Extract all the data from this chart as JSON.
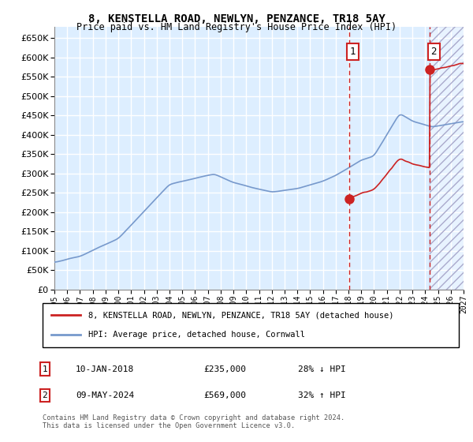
{
  "title": "8, KENSTELLA ROAD, NEWLYN, PENZANCE, TR18 5AY",
  "subtitle": "Price paid vs. HM Land Registry's House Price Index (HPI)",
  "ytick_values": [
    0,
    50000,
    100000,
    150000,
    200000,
    250000,
    300000,
    350000,
    400000,
    450000,
    500000,
    550000,
    600000,
    650000
  ],
  "ylim": [
    0,
    680000
  ],
  "xlim_start": 1995.0,
  "xlim_end": 2027.0,
  "x_ticks": [
    1995,
    1996,
    1997,
    1998,
    1999,
    2000,
    2001,
    2002,
    2003,
    2004,
    2005,
    2006,
    2007,
    2008,
    2009,
    2010,
    2011,
    2012,
    2013,
    2014,
    2015,
    2016,
    2017,
    2018,
    2019,
    2020,
    2021,
    2022,
    2023,
    2024,
    2025,
    2026,
    2027
  ],
  "hpi_color": "#7799cc",
  "price_color": "#cc2222",
  "sale1_date": 2018.04,
  "sale1_price": 235000,
  "sale1_label": "1",
  "sale2_date": 2024.37,
  "sale2_price": 569000,
  "sale2_label": "2",
  "future_start": 2024.37,
  "legend_line1": "8, KENSTELLA ROAD, NEWLYN, PENZANCE, TR18 5AY (detached house)",
  "legend_line2": "HPI: Average price, detached house, Cornwall",
  "note1_label": "1",
  "note1_date": "10-JAN-2018",
  "note1_price": "£235,000",
  "note1_pct": "28% ↓ HPI",
  "note2_label": "2",
  "note2_date": "09-MAY-2024",
  "note2_price": "£569,000",
  "note2_pct": "32% ↑ HPI",
  "footer": "Contains HM Land Registry data © Crown copyright and database right 2024.\nThis data is licensed under the Open Government Licence v3.0.",
  "background_chart": "#ddeeff",
  "grid_color": "#ffffff"
}
